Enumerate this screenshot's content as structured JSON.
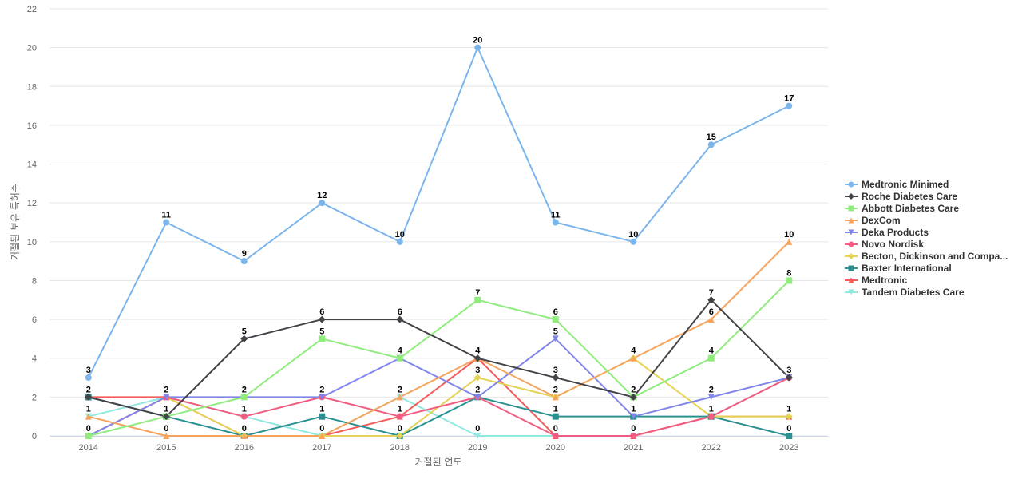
{
  "chart_data": {
    "type": "line",
    "xlabel": "거절된 연도",
    "ylabel": "거절된 보유 특허수",
    "ylim": [
      0,
      22
    ],
    "yticks": [
      0,
      2,
      4,
      6,
      8,
      10,
      12,
      14,
      16,
      18,
      20,
      22
    ],
    "grid": true,
    "legend_position": "right",
    "categories": [
      "2014",
      "2015",
      "2016",
      "2017",
      "2018",
      "2019",
      "2020",
      "2021",
      "2022",
      "2023"
    ],
    "series": [
      {
        "name": "Medtronic Minimed",
        "color": "#7cb5ec",
        "marker": "circle",
        "values": [
          3,
          11,
          9,
          12,
          10,
          20,
          11,
          10,
          15,
          17
        ]
      },
      {
        "name": "Roche Diabetes Care",
        "color": "#434348",
        "marker": "diamond",
        "values": [
          2,
          1,
          5,
          6,
          6,
          4,
          3,
          2,
          7,
          3
        ]
      },
      {
        "name": "Abbott Diabetes Care",
        "color": "#90ed7d",
        "marker": "square",
        "values": [
          0,
          1,
          2,
          5,
          4,
          7,
          6,
          2,
          4,
          8
        ]
      },
      {
        "name": "DexCom",
        "color": "#f7a35c",
        "marker": "triangle",
        "values": [
          1,
          0,
          0,
          0,
          2,
          4,
          2,
          4,
          6,
          10
        ]
      },
      {
        "name": "Deka Products",
        "color": "#8085e9",
        "marker": "triangle-down",
        "values": [
          0,
          2,
          2,
          2,
          4,
          2,
          5,
          1,
          2,
          3
        ]
      },
      {
        "name": "Novo Nordisk",
        "color": "#f15c80",
        "marker": "circle",
        "values": [
          0,
          2,
          1,
          2,
          1,
          2,
          0,
          0,
          1,
          3
        ]
      },
      {
        "name": "Becton, Dickinson and Compa...",
        "color": "#e4d354",
        "marker": "diamond",
        "values": [
          0,
          2,
          0,
          0,
          0,
          3,
          2,
          4,
          1,
          1
        ]
      },
      {
        "name": "Baxter International",
        "color": "#2b908f",
        "marker": "square",
        "values": [
          2,
          1,
          0,
          1,
          0,
          2,
          1,
          1,
          1,
          0
        ]
      },
      {
        "name": "Medtronic",
        "color": "#f45b5b",
        "marker": "triangle",
        "values": [
          2,
          2,
          0,
          0,
          1,
          4,
          0,
          0,
          1,
          1
        ]
      },
      {
        "name": "Tandem Diabetes Care",
        "color": "#91e8e1",
        "marker": "triangle-down",
        "values": [
          1,
          2,
          1,
          0,
          2,
          0,
          0,
          0,
          1,
          3
        ]
      }
    ],
    "data_labels": [
      {
        "category": "2014",
        "series": "Medtronic Minimed",
        "text": "3"
      },
      {
        "category": "2014",
        "series": "Roche Diabetes Care",
        "text": "2"
      },
      {
        "category": "2014",
        "series": "Tandem Diabetes Care",
        "text": "1"
      },
      {
        "category": "2014",
        "series": "Abbott Diabetes Care",
        "text": "0"
      },
      {
        "category": "2015",
        "series": "Medtronic Minimed",
        "text": "11"
      },
      {
        "category": "2015",
        "series": "Deka Products",
        "text": "2"
      },
      {
        "category": "2015",
        "series": "Roche Diabetes Care",
        "text": "1"
      },
      {
        "category": "2015",
        "series": "DexCom",
        "text": "0"
      },
      {
        "category": "2016",
        "series": "Medtronic Minimed",
        "text": "9"
      },
      {
        "category": "2016",
        "series": "Roche Diabetes Care",
        "text": "5"
      },
      {
        "category": "2016",
        "series": "Deka Products",
        "text": "2"
      },
      {
        "category": "2016",
        "series": "Novo Nordisk",
        "text": "1"
      },
      {
        "category": "2016",
        "series": "Medtronic",
        "text": "0"
      },
      {
        "category": "2017",
        "series": "Medtronic Minimed",
        "text": "12"
      },
      {
        "category": "2017",
        "series": "Roche Diabetes Care",
        "text": "6"
      },
      {
        "category": "2017",
        "series": "Abbott Diabetes Care",
        "text": "5"
      },
      {
        "category": "2017",
        "series": "Deka Products",
        "text": "2"
      },
      {
        "category": "2017",
        "series": "Baxter International",
        "text": "1"
      },
      {
        "category": "2017",
        "series": "DexCom",
        "text": "0"
      },
      {
        "category": "2018",
        "series": "Medtronic Minimed",
        "text": "10"
      },
      {
        "category": "2018",
        "series": "Roche Diabetes Care",
        "text": "6"
      },
      {
        "category": "2018",
        "series": "Deka Products",
        "text": "4"
      },
      {
        "category": "2018",
        "series": "DexCom",
        "text": "2"
      },
      {
        "category": "2018",
        "series": "Medtronic",
        "text": "1"
      },
      {
        "category": "2018",
        "series": "Baxter International",
        "text": "0"
      },
      {
        "category": "2019",
        "series": "Medtronic Minimed",
        "text": "20"
      },
      {
        "category": "2019",
        "series": "Abbott Diabetes Care",
        "text": "7"
      },
      {
        "category": "2019",
        "series": "Roche Diabetes Care",
        "text": "4"
      },
      {
        "category": "2019",
        "series": "Becton, Dickinson and Compa...",
        "text": "3"
      },
      {
        "category": "2019",
        "series": "Deka Products",
        "text": "2"
      },
      {
        "category": "2019",
        "series": "Tandem Diabetes Care",
        "text": "0"
      },
      {
        "category": "2020",
        "series": "Medtronic Minimed",
        "text": "11"
      },
      {
        "category": "2020",
        "series": "Abbott Diabetes Care",
        "text": "6"
      },
      {
        "category": "2020",
        "series": "Deka Products",
        "text": "5"
      },
      {
        "category": "2020",
        "series": "Roche Diabetes Care",
        "text": "3"
      },
      {
        "category": "2020",
        "series": "DexCom",
        "text": "2"
      },
      {
        "category": "2020",
        "series": "Baxter International",
        "text": "1"
      },
      {
        "category": "2020",
        "series": "Novo Nordisk",
        "text": "0"
      },
      {
        "category": "2021",
        "series": "Medtronic Minimed",
        "text": "10"
      },
      {
        "category": "2021",
        "series": "DexCom",
        "text": "4"
      },
      {
        "category": "2021",
        "series": "Roche Diabetes Care",
        "text": "2"
      },
      {
        "category": "2021",
        "series": "Deka Products",
        "text": "1"
      },
      {
        "category": "2021",
        "series": "Novo Nordisk",
        "text": "0"
      },
      {
        "category": "2022",
        "series": "Medtronic Minimed",
        "text": "15"
      },
      {
        "category": "2022",
        "series": "Roche Diabetes Care",
        "text": "7"
      },
      {
        "category": "2022",
        "series": "DexCom",
        "text": "6"
      },
      {
        "category": "2022",
        "series": "Abbott Diabetes Care",
        "text": "4"
      },
      {
        "category": "2022",
        "series": "Deka Products",
        "text": "2"
      },
      {
        "category": "2022",
        "series": "Baxter International",
        "text": "1"
      },
      {
        "category": "2023",
        "series": "Medtronic Minimed",
        "text": "17"
      },
      {
        "category": "2023",
        "series": "DexCom",
        "text": "10"
      },
      {
        "category": "2023",
        "series": "Abbott Diabetes Care",
        "text": "8"
      },
      {
        "category": "2023",
        "series": "Roche Diabetes Care",
        "text": "3"
      },
      {
        "category": "2023",
        "series": "Medtronic",
        "text": "1"
      },
      {
        "category": "2023",
        "series": "Baxter International",
        "text": "0"
      }
    ]
  }
}
